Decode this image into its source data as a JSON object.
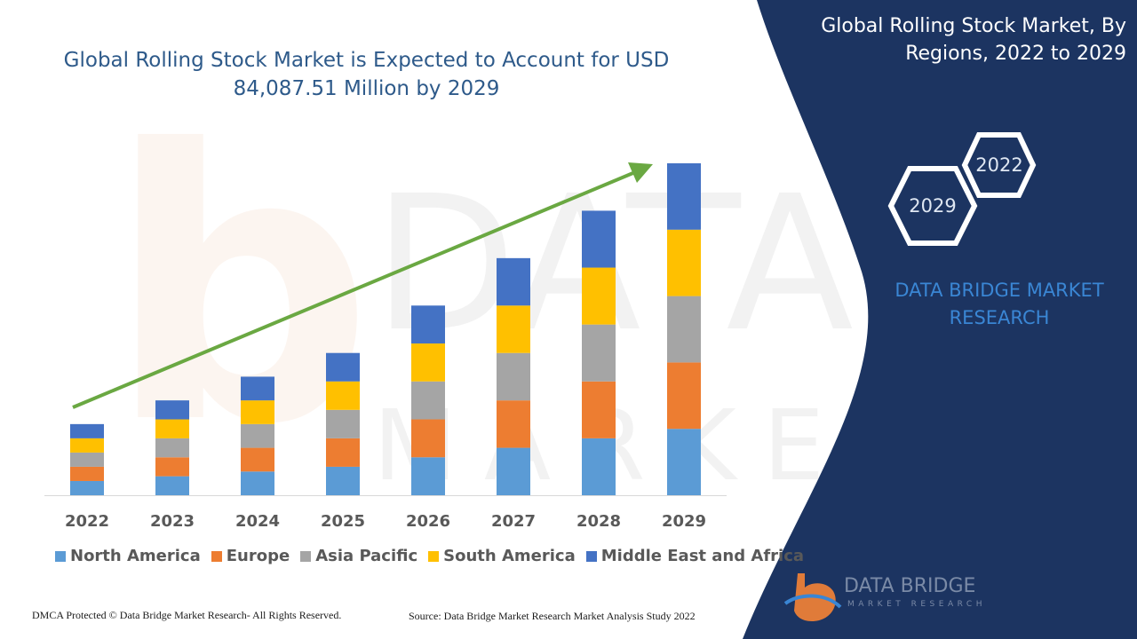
{
  "header": {
    "title": "Global Rolling Stock Market is Expected to Account for USD 84,087.51 Million by 2029",
    "right_title": "Global Rolling Stock Market, By Regions, 2022 to 2029"
  },
  "side_panel": {
    "hex_back": "2022",
    "hex_front": "2029",
    "brand": "DATA BRIDGE MARKET RESEARCH"
  },
  "footer": {
    "left": "DMCA Protected © Data Bridge Market Research- All Rights Reserved.",
    "right": "Source: Data Bridge Market Research Market Analysis Study 2022"
  },
  "logo": {
    "name": "DATA BRIDGE",
    "sub": "MARKET RESEARCH"
  },
  "colors": {
    "panel": "#1c3461",
    "arrow": "#6aa842"
  },
  "chart_data": {
    "type": "bar",
    "stacked": true,
    "categories": [
      "2022",
      "2023",
      "2024",
      "2025",
      "2026",
      "2027",
      "2028",
      "2029"
    ],
    "series": [
      {
        "name": "North America",
        "color": "#5b9bd5",
        "values": [
          3.0,
          4.0,
          5.0,
          6.0,
          8.0,
          10.0,
          12.0,
          14.0
        ]
      },
      {
        "name": "Europe",
        "color": "#ed7d31",
        "values": [
          3.0,
          4.0,
          5.0,
          6.0,
          8.0,
          10.0,
          12.0,
          14.0
        ]
      },
      {
        "name": "Asia Pacific",
        "color": "#a5a5a5",
        "values": [
          3.0,
          4.0,
          5.0,
          6.0,
          8.0,
          10.0,
          12.0,
          14.0
        ]
      },
      {
        "name": "South America",
        "color": "#ffc000",
        "values": [
          3.0,
          4.0,
          5.0,
          6.0,
          8.0,
          10.0,
          12.0,
          14.0
        ]
      },
      {
        "name": "Middle East and Africa",
        "color": "#4472c4",
        "values": [
          3.0,
          4.0,
          5.0,
          6.0,
          8.0,
          10.0,
          12.0,
          14.0
        ]
      }
    ],
    "ylim": [
      0,
      70
    ],
    "legend_position": "bottom",
    "grid": false
  }
}
